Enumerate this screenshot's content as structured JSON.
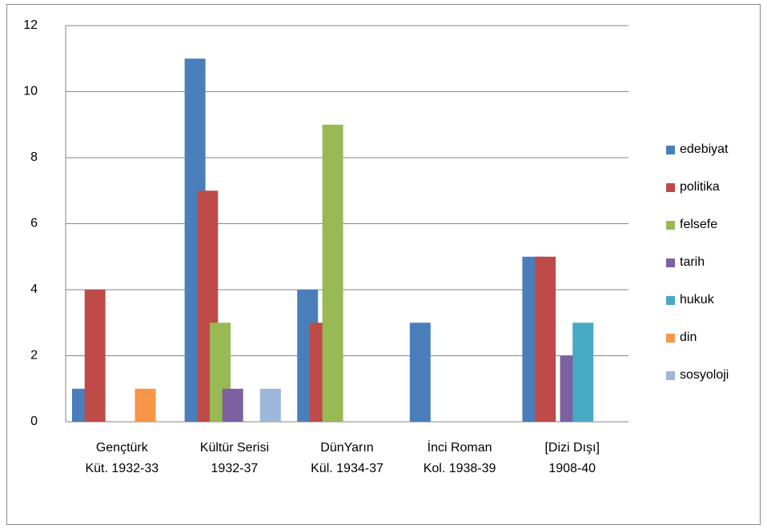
{
  "chart_data": {
    "type": "bar",
    "categories": [
      "Gençtürk Küt. 1932-33",
      "Kültür Serisi 1932-37",
      "DünYarın Kül. 1934-37",
      "İnci Roman Kol. 1938-39",
      "[Dizi Dışı] 1908-40"
    ],
    "series": [
      {
        "name": "edebiyat",
        "color": "#4a7ebb",
        "values": [
          1,
          11,
          4,
          3,
          5
        ]
      },
      {
        "name": "politika",
        "color": "#be4b48",
        "values": [
          4,
          7,
          3,
          0,
          5
        ]
      },
      {
        "name": "felsefe",
        "color": "#98b954",
        "values": [
          0,
          3,
          9,
          0,
          0
        ]
      },
      {
        "name": "tarih",
        "color": "#7d60a0",
        "values": [
          0,
          1,
          0,
          0,
          2
        ]
      },
      {
        "name": "hukuk",
        "color": "#46aac5",
        "values": [
          0,
          0,
          0,
          0,
          3
        ]
      },
      {
        "name": "din",
        "color": "#f79646",
        "values": [
          1,
          0,
          0,
          0,
          0
        ]
      },
      {
        "name": "sosyoloji",
        "color": "#9bb7d9",
        "values": [
          0,
          1,
          0,
          0,
          0
        ]
      }
    ],
    "ylim": [
      0,
      12
    ],
    "yticks": [
      0,
      2,
      4,
      6,
      8,
      10,
      12
    ],
    "grid": true,
    "legend": "right"
  }
}
